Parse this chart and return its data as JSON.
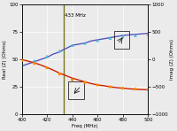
{
  "freq_line": [
    400,
    405,
    410,
    415,
    420,
    425,
    430,
    433,
    435,
    440,
    445,
    450,
    455,
    460,
    465,
    470,
    475,
    480,
    485,
    490,
    495,
    500
  ],
  "real_sim_left": [
    44,
    46,
    48,
    50,
    52,
    55,
    57,
    59,
    60,
    63,
    64,
    65,
    67,
    68,
    69,
    70,
    71,
    72,
    72.5,
    73,
    73.5,
    74
  ],
  "imag_sim_right": [
    0,
    -30,
    -60,
    -100,
    -145,
    -195,
    -250,
    -275,
    -295,
    -340,
    -375,
    -410,
    -440,
    -465,
    -480,
    -500,
    -515,
    -525,
    -535,
    -545,
    -550,
    -555
  ],
  "freq_pts": [
    400,
    410,
    420,
    430,
    440,
    450,
    460,
    470,
    480,
    490,
    500
  ],
  "real_pts_left": [
    45,
    49,
    53,
    58,
    63,
    65,
    67.5,
    69.5,
    71,
    72,
    73
  ],
  "imag_pts_right": [
    -15,
    -70,
    -150,
    -265,
    -370,
    -420,
    -465,
    -500,
    -525,
    -540,
    -550
  ],
  "vline_x": 433,
  "xlim": [
    400,
    500
  ],
  "ylim_left": [
    0,
    100
  ],
  "ylim_right": [
    -1000,
    1000
  ],
  "real_line_color": "#5555bb",
  "imag_line_color": "#cc2200",
  "real_pts_color": "#44bbdd",
  "imag_pts_color": "#ff8800",
  "vline_color": "#777722",
  "bg_color": "#ebebeb",
  "xlabel": "Freq (MHz)",
  "ylabel_left": "Real (Z) (Ohms)",
  "ylabel_right": "Imag (Z) (Ohms)",
  "vline_label": "433 MHz",
  "xticks": [
    400,
    420,
    440,
    460,
    480,
    500
  ],
  "yticks_left": [
    0,
    25,
    50,
    75,
    100
  ],
  "yticks_right": [
    -1000,
    -500,
    0,
    500,
    1000
  ],
  "grid_color": "#ffffff"
}
